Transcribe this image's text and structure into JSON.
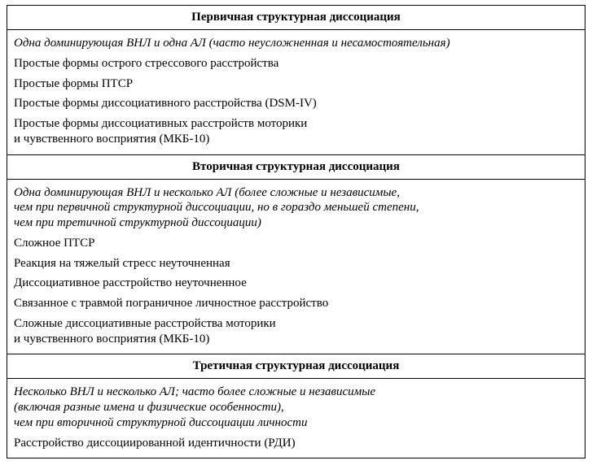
{
  "sections": [
    {
      "title": "Первичная структурная диссоциация",
      "rows": [
        {
          "italic": true,
          "text": "Одна доминирующая ВНЛ и одна АЛ (часто неусложненная и несамостоятельная)"
        },
        {
          "italic": false,
          "text": "Простые формы острого стрессового расстройства"
        },
        {
          "italic": false,
          "text": "Простые формы ПТСР"
        },
        {
          "italic": false,
          "text": "Простые формы диссоциативного расстройства (DSM-IV)"
        },
        {
          "italic": false,
          "text": "Простые формы диссоциативных расстройств моторики\nи чувственного восприятия (МКБ-10)"
        }
      ]
    },
    {
      "title": "Вторичная структурная диссоциация",
      "rows": [
        {
          "italic": true,
          "text": "Одна доминирующая ВНЛ и несколько АЛ (более сложные и независимые,\nчем при первичной структурной диссоциации, но в гораздо меньшей степени,\nчем при третичной структурной диссоциации)"
        },
        {
          "italic": false,
          "text": "Сложное ПТСР"
        },
        {
          "italic": false,
          "text": "Реакция на тяжелый стресс неуточненная"
        },
        {
          "italic": false,
          "text": "Диссоциативное расстройство неуточненное"
        },
        {
          "italic": false,
          "text": "Связанное с травмой пограничное личностное расстройство"
        },
        {
          "italic": false,
          "text": "Сложные диссоциативные расстройства моторики\nи чувственного восприятия (МКБ-10)"
        }
      ]
    },
    {
      "title": "Третичная структурная диссоциация",
      "rows": [
        {
          "italic": true,
          "text": "Несколько ВНЛ и несколько АЛ; часто более сложные и независимые\n(включая разные имена и физические особенности),\nчем при вторичной структурной диссоциации личности"
        },
        {
          "italic": false,
          "text": "Расстройство диссоциированной идентичности (РДИ)"
        }
      ]
    }
  ],
  "style": {
    "font_family": "Times New Roman",
    "base_fontsize_pt": 11,
    "header_fontsize_pt": 11,
    "header_bold": true,
    "border_color": "#000000",
    "background_color": "#ffffff",
    "text_color": "#000000"
  }
}
